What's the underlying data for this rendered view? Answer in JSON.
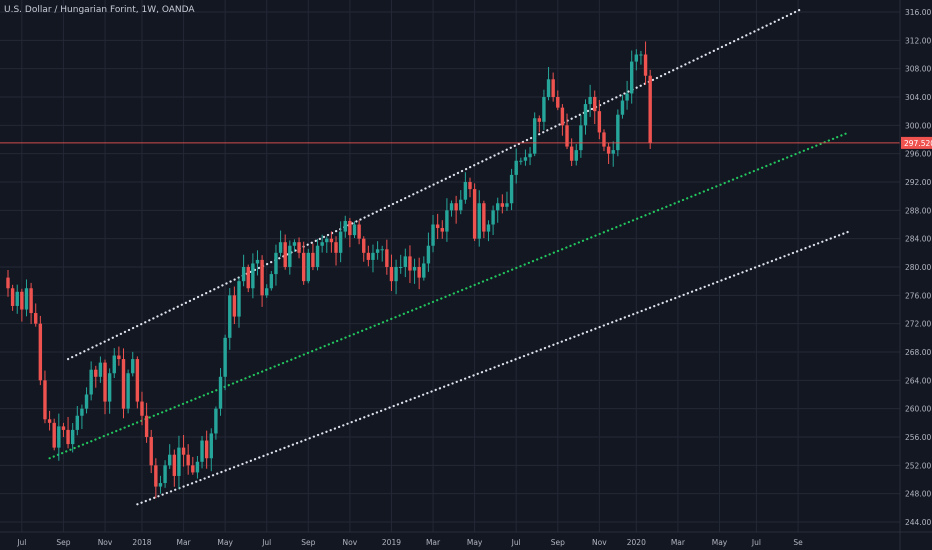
{
  "header": {
    "title": "U.S. Dollar / Hungarian Forint, 1W, OANDA"
  },
  "colors": {
    "background": "#131722",
    "grid": "#242836",
    "up": "#26a69a",
    "down": "#ef5350",
    "axis_text": "#b2b5be",
    "price_line": "#ef5350",
    "channel_upper": "#e0e3eb",
    "channel_middle": "#22c55e",
    "channel_lower": "#e0e3eb"
  },
  "chart_data": {
    "type": "candlestick",
    "title": "U.S. Dollar / Hungarian Forint, 1W, OANDA",
    "ylim": [
      242.5,
      317.5
    ],
    "y_ticks": [
      "316.00",
      "312.00",
      "308.00",
      "304.00",
      "300.00",
      "296.00",
      "292.00",
      "288.00",
      "284.00",
      "280.00",
      "276.00",
      "272.00",
      "268.00",
      "264.00",
      "260.00",
      "256.00",
      "252.00",
      "248.00",
      "244.00"
    ],
    "x_ticks": [
      {
        "label": "Jul",
        "week": 3
      },
      {
        "label": "Sep",
        "week": 12
      },
      {
        "label": "Nov",
        "week": 21
      },
      {
        "label": "2018",
        "week": 29
      },
      {
        "label": "Mar",
        "week": 38
      },
      {
        "label": "May",
        "week": 47
      },
      {
        "label": "Jul",
        "week": 56
      },
      {
        "label": "Sep",
        "week": 65
      },
      {
        "label": "Nov",
        "week": 74
      },
      {
        "label": "2019",
        "week": 83
      },
      {
        "label": "Mar",
        "week": 92
      },
      {
        "label": "May",
        "week": 101
      },
      {
        "label": "Jul",
        "week": 110
      },
      {
        "label": "Sep",
        "week": 119
      },
      {
        "label": "Nov",
        "week": 128
      },
      {
        "label": "2020",
        "week": 136
      },
      {
        "label": "Mar",
        "week": 145
      },
      {
        "label": "May",
        "week": 154
      },
      {
        "label": "Jul",
        "week": 162
      },
      {
        "label": "Se",
        "week": 171
      }
    ],
    "last_price": "297.520",
    "last_price_value": 297.52,
    "close": [
      277.0,
      274.5,
      276.5,
      274.0,
      277.0,
      273.5,
      272.0,
      264.0,
      258.5,
      258.0,
      254.5,
      257.5,
      257.0,
      255.0,
      257.0,
      259.0,
      260.0,
      262.0,
      265.5,
      264.5,
      266.5,
      261.0,
      265.0,
      267.5,
      267.0,
      260.0,
      265.0,
      267.0,
      261.0,
      259.0,
      256.0,
      252.0,
      249.0,
      249.5,
      252.0,
      253.5,
      250.5,
      254.5,
      253.5,
      252.0,
      251.0,
      252.5,
      255.5,
      253.0,
      256.5,
      260.0,
      264.5,
      270.0,
      276.0,
      273.0,
      278.0,
      280.0,
      277.0,
      280.5,
      281.0,
      276.0,
      277.0,
      279.0,
      282.0,
      283.5,
      280.0,
      283.0,
      283.5,
      282.0,
      278.0,
      282.0,
      280.0,
      283.0,
      283.5,
      284.0,
      283.5,
      282.0,
      285.0,
      286.5,
      284.5,
      286.0,
      284.0,
      282.0,
      281.0,
      282.0,
      282.5,
      282.5,
      280.0,
      278.0,
      280.0,
      280.0,
      281.5,
      279.5,
      280.0,
      278.5,
      280.5,
      283.0,
      286.0,
      285.5,
      285.0,
      288.0,
      289.0,
      288.0,
      289.5,
      292.0,
      291.0,
      284.0,
      289.0,
      285.0,
      286.0,
      288.0,
      289.0,
      288.5,
      289.0,
      293.0,
      295.0,
      295.0,
      295.5,
      296.0,
      301.0,
      300.5,
      304.0,
      306.5,
      304.0,
      302.5,
      300.0,
      297.0,
      295.0,
      296.5,
      300.0,
      303.0,
      304.0,
      302.0,
      299.0,
      297.0,
      296.0,
      296.5,
      301.5,
      303.5,
      304.5,
      309.0,
      310.0,
      310.0,
      307.0,
      297.5
    ],
    "channel_lines": [
      {
        "name": "upper",
        "from": {
          "week": 13,
          "value": 267.0
        },
        "to": {
          "week": 172,
          "value": 316.5
        }
      },
      {
        "name": "middle",
        "from": {
          "week": 9,
          "value": 253.0
        },
        "to": {
          "week": 182,
          "value": 299.0
        }
      },
      {
        "name": "lower",
        "from": {
          "week": 28,
          "value": 246.5
        },
        "to": {
          "week": 182,
          "value": 285.0
        }
      }
    ]
  }
}
